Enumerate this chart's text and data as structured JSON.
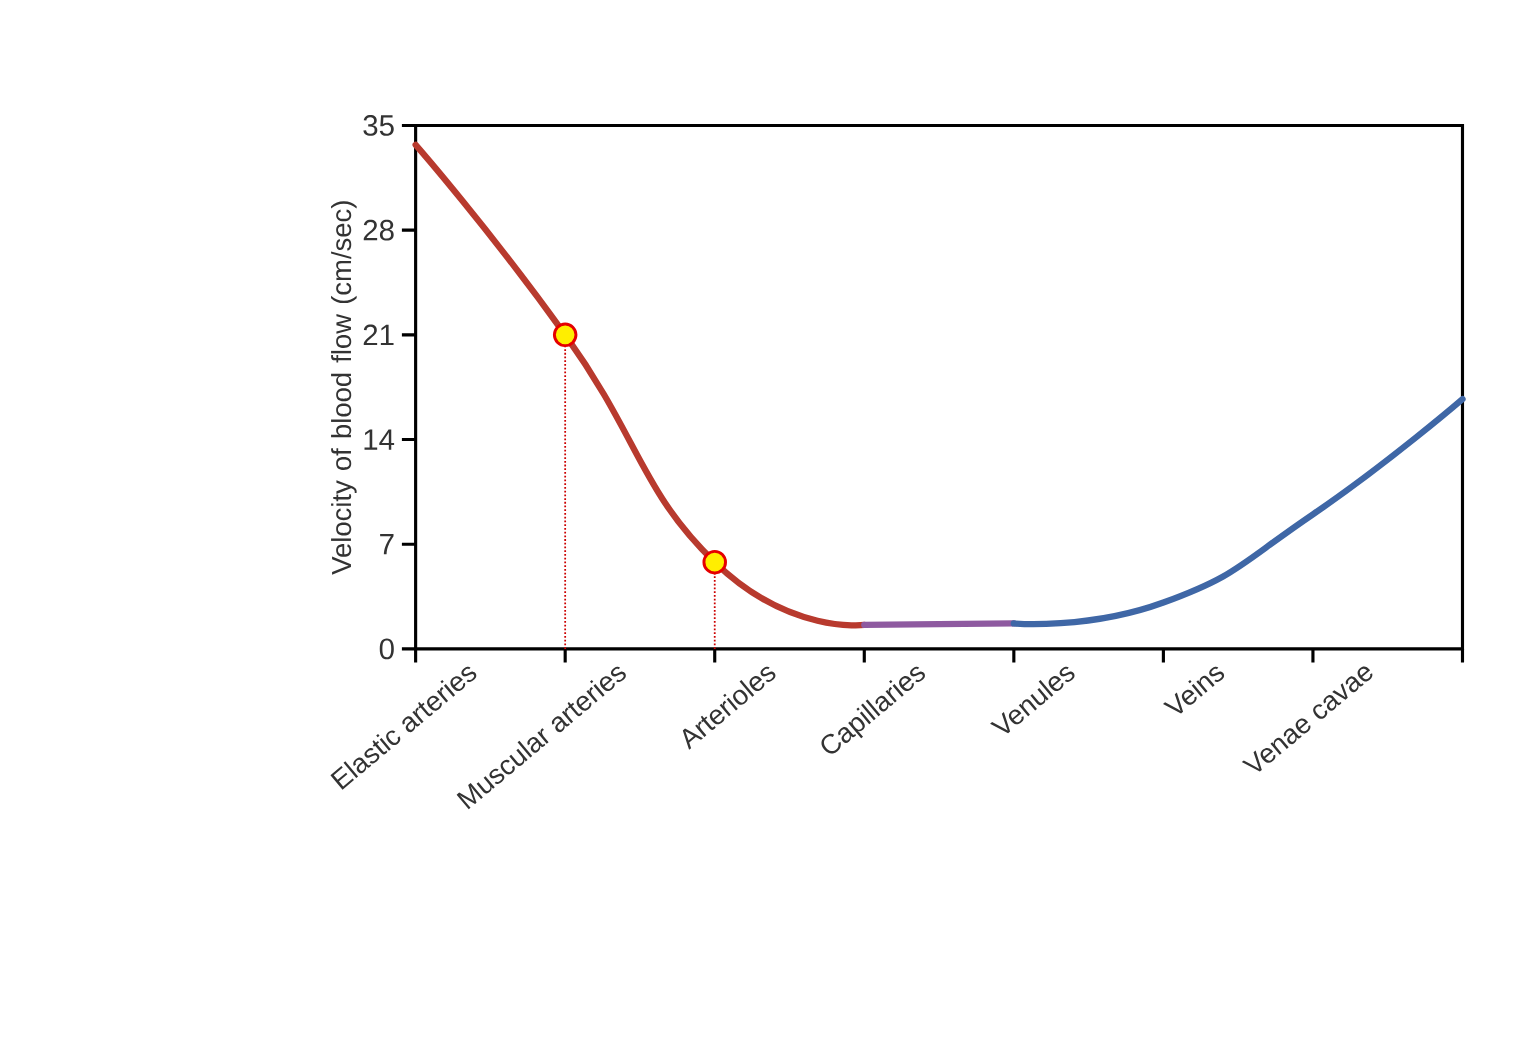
{
  "chart_data": {
    "type": "line",
    "ylabel": "Velocity of blood flow (cm/sec)",
    "categories": [
      "Elastic arteries",
      "Muscular arteries",
      "Arterioles",
      "Capillaries",
      "Venules",
      "Veins",
      "Venae cavae",
      null
    ],
    "series": [
      {
        "color": "#b83a2e",
        "values": [
          33.7,
          21,
          5.8,
          1.6,
          null,
          null,
          null,
          null
        ]
      },
      {
        "color": "#8e5aa0",
        "values": [
          null,
          null,
          null,
          1.6,
          1.7,
          null,
          null,
          null
        ]
      },
      {
        "color": "#3f67a6",
        "values": [
          null,
          null,
          null,
          null,
          1.7,
          3.1,
          9.0,
          16.7
        ]
      },
      {
        "type": "lollipop",
        "color": "#ffee00",
        "line_style": "dotted",
        "marker": "circle",
        "values": [
          null,
          21,
          5.8,
          null,
          null,
          null,
          null,
          null
        ]
      }
    ],
    "ylim": [
      0,
      35
    ],
    "yticks": [
      0,
      7,
      14,
      21,
      28,
      35
    ],
    "grid": false,
    "marker": "none",
    "line_style": "solid"
  }
}
